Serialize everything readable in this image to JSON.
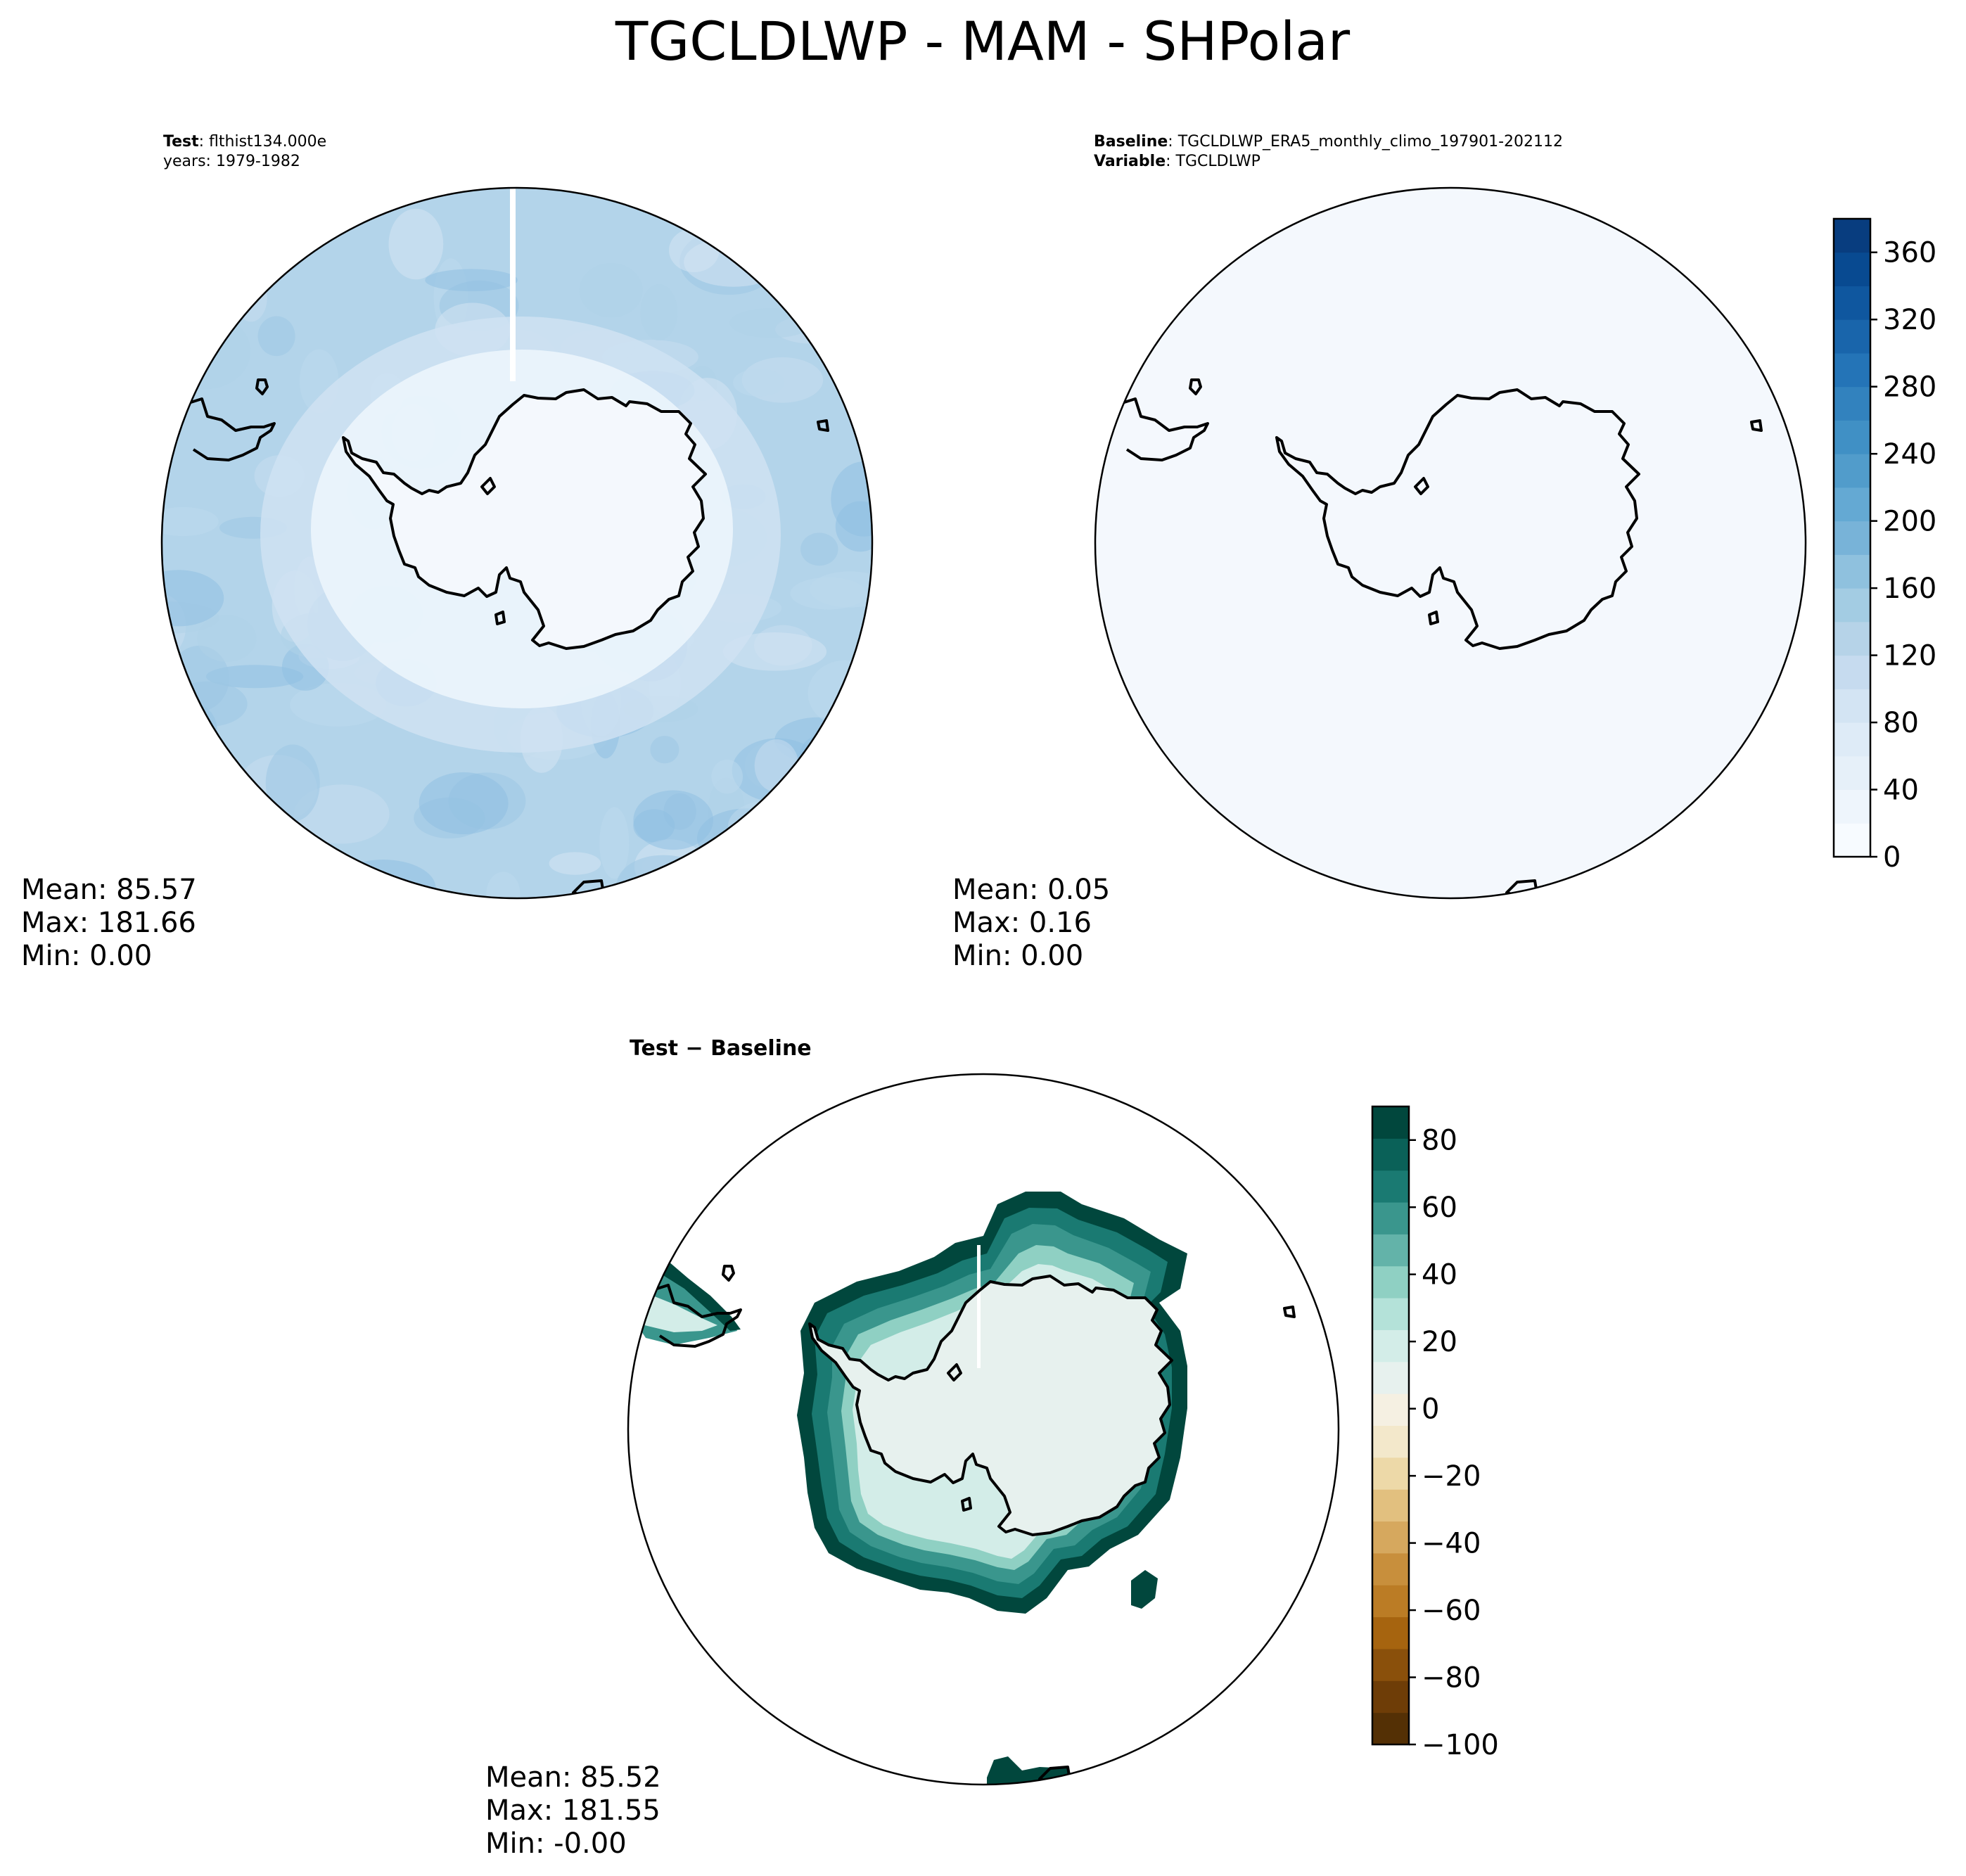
{
  "figure": {
    "title": "TGCLDLWP - MAM - SHPolar"
  },
  "test_panel": {
    "header_key": "Test",
    "header_value": ": flthist134.000e",
    "years_line": "years: 1979-1982",
    "stats": {
      "mean": "Mean: 85.57",
      "max": "Max: 181.66",
      "min": "Min:  0.00"
    },
    "field_colors": [
      "#aed1e8",
      "#bcd8ec",
      "#c6dcef",
      "#9cc7e4",
      "#d4e4f3",
      "#8fbfe1"
    ]
  },
  "baseline_panel": {
    "baseline_key": "Baseline",
    "baseline_value": ": TGCLDLWP_ERA5_monthly_climo_197901-202112",
    "variable_key": "Variable",
    "variable_value": ": TGCLDLWP",
    "stats": {
      "mean": "Mean:  0.05",
      "max": "Max:  0.16",
      "min": "Min:  0.00"
    },
    "field_color": "#f4f8fd"
  },
  "diff_panel": {
    "title_a": "Test",
    "title_sep": " − ",
    "title_b": "Baseline",
    "stats": {
      "mean": "Mean: 85.52",
      "max": "Max: 181.55",
      "min": "Min: -0.00"
    }
  },
  "colorbar_abs": {
    "vmin": 0,
    "vmax": 380,
    "tick_values": [
      0,
      40,
      80,
      120,
      160,
      200,
      240,
      280,
      320,
      360
    ],
    "tick_labels": [
      "0",
      "40",
      "80",
      "120",
      "160",
      "200",
      "240",
      "280",
      "320",
      "360"
    ],
    "colors": [
      "#f7fbff",
      "#eef5fc",
      "#e6f0f9",
      "#deebf7",
      "#d3e4f3",
      "#c6dbef",
      "#b6d3e8",
      "#a3cce3",
      "#8fc1de",
      "#78b3d8",
      "#64a9d3",
      "#519ccb",
      "#4090c5",
      "#3282be",
      "#2474b7",
      "#1965ab",
      "#0f579f",
      "#084a91",
      "#083d7f"
    ]
  },
  "colorbar_diff": {
    "vmin": -100,
    "vmax": 90,
    "tick_values": [
      -100,
      -80,
      -60,
      -40,
      -20,
      0,
      20,
      40,
      60,
      80
    ],
    "tick_labels": [
      "−100",
      "−80",
      "−60",
      "−40",
      "−20",
      "0",
      "20",
      "40",
      "60",
      "80"
    ],
    "colors": [
      "#543005",
      "#6e3d07",
      "#8a500b",
      "#a6640f",
      "#bb7c25",
      "#c88f3c",
      "#d6a85e",
      "#e2c07f",
      "#edd9a8",
      "#f3e8cb",
      "#f5f0e2",
      "#e7f1ee",
      "#d3ede8",
      "#b4e2d9",
      "#8fd0c3",
      "#63b3a9",
      "#3a968d",
      "#1a7a72",
      "#0a6158",
      "#01473d"
    ]
  }
}
